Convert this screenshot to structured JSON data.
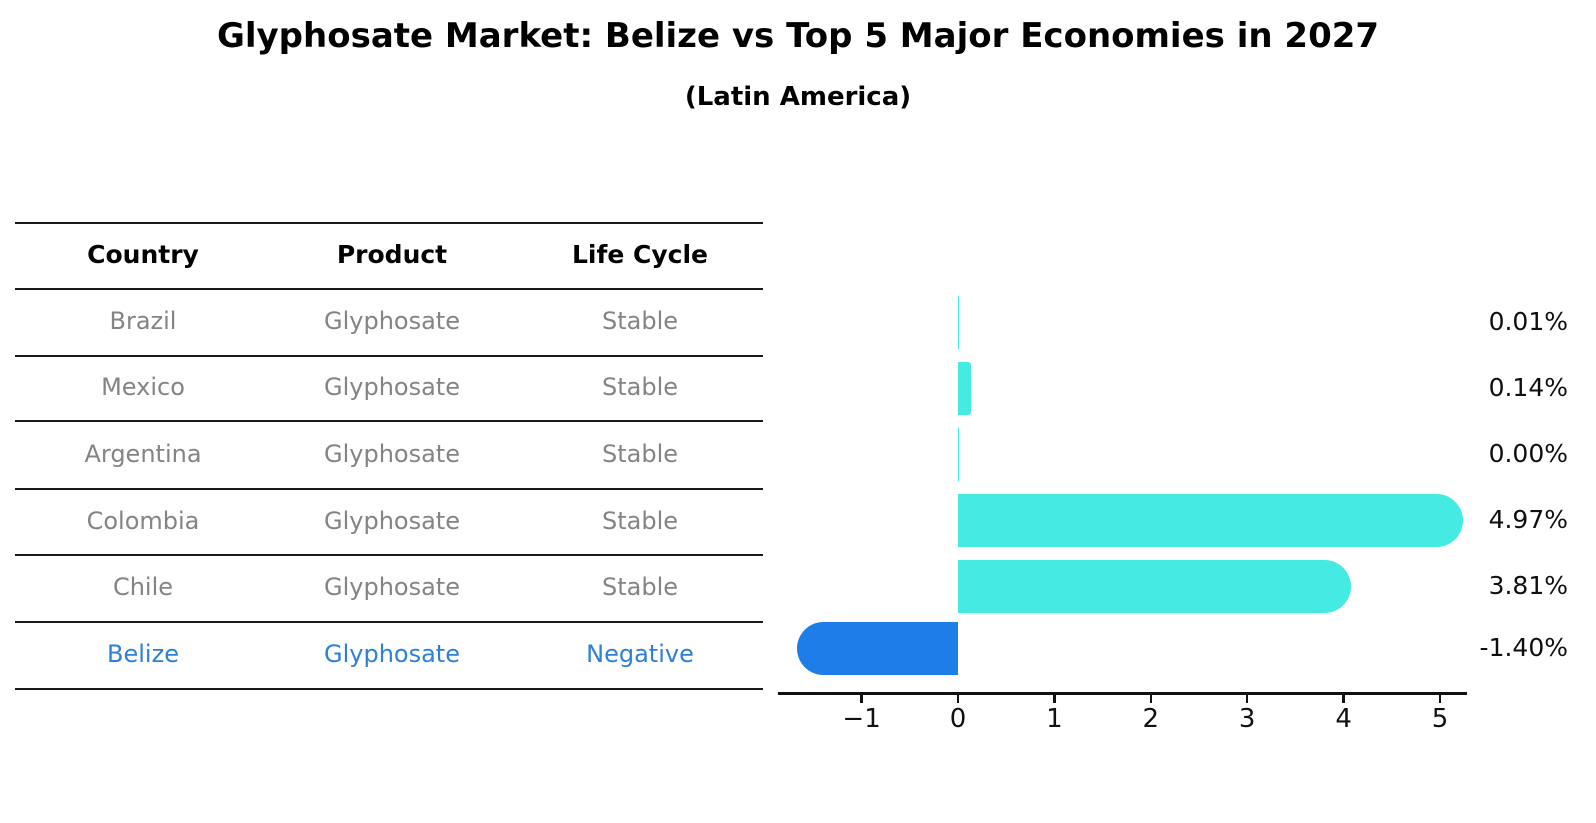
{
  "title": "Glyphosate Market: Belize vs Top 5 Major Economies in 2027",
  "subtitle": "(Latin America)",
  "table": {
    "headers": [
      "Country",
      "Product",
      "Life Cycle"
    ],
    "rows": [
      {
        "country": "Brazil",
        "product": "Glyphosate",
        "life_cycle": "Stable",
        "highlight": false
      },
      {
        "country": "Mexico",
        "product": "Glyphosate",
        "life_cycle": "Stable",
        "highlight": false
      },
      {
        "country": "Argentina",
        "product": "Glyphosate",
        "life_cycle": "Stable",
        "highlight": false
      },
      {
        "country": "Colombia",
        "product": "Glyphosate",
        "life_cycle": "Stable",
        "highlight": false
      },
      {
        "country": "Chile",
        "product": "Glyphosate",
        "life_cycle": "Stable",
        "highlight": false
      },
      {
        "country": "Belize",
        "product": "Glyphosate",
        "life_cycle": "Negative",
        "highlight": true
      }
    ]
  },
  "chart_data": {
    "type": "bar",
    "orientation": "horizontal",
    "categories": [
      "Brazil",
      "Mexico",
      "Argentina",
      "Colombia",
      "Chile",
      "Belize"
    ],
    "values": [
      0.01,
      0.14,
      0.0,
      4.97,
      3.81,
      -1.4
    ],
    "value_labels": [
      "0.01%",
      "0.14%",
      "0.00%",
      "4.97%",
      "3.81%",
      "-1.40%"
    ],
    "x_ticks": [
      -1,
      0,
      1,
      2,
      3,
      4,
      5
    ],
    "x_tick_labels": [
      "−1",
      "0",
      "1",
      "2",
      "3",
      "4",
      "5"
    ],
    "xlim": [
      -1.87,
      5.28
    ],
    "units": "percent",
    "grid": false,
    "legend": "none",
    "highlight_category": "Belize",
    "title": "Glyphosate Market: Belize vs Top 5 Major Economies in 2027",
    "subtitle": "(Latin America)"
  },
  "colors": {
    "positive_bar": "#45eae3",
    "negative_bar": "#1e7de8",
    "highlight_text": "#2e7fd6",
    "muted_text": "#848484",
    "axis": "#111111"
  }
}
